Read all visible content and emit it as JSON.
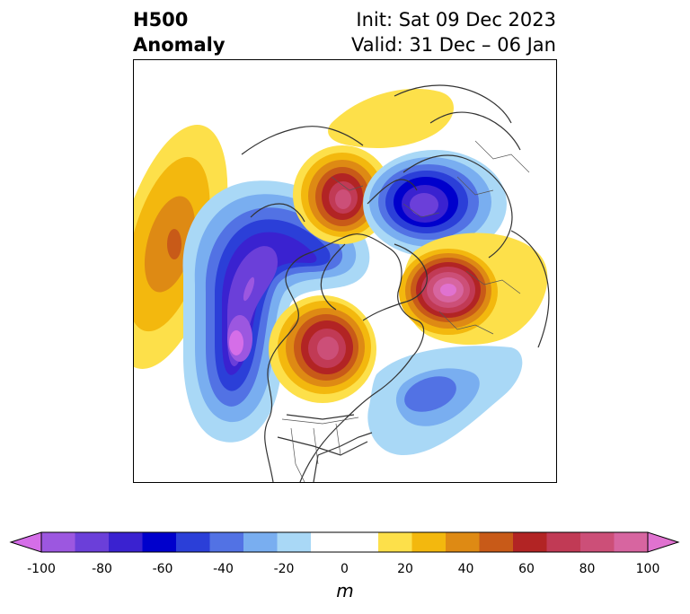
{
  "title": {
    "left_line1": "H500",
    "left_line2": "Anomaly",
    "right_line1": "Init: Sat 09 Dec 2023",
    "right_line2": "Valid: 31 Dec – 06 Jan"
  },
  "colorbar": {
    "unit": "m",
    "range": [
      -100,
      100
    ],
    "step": 10,
    "extend": "both",
    "ticks": [
      "-100",
      "-80",
      "-60",
      "-40",
      "-20",
      "0",
      "20",
      "40",
      "60",
      "80",
      "100"
    ],
    "colors": [
      "#d56ee8",
      "#9c57e0",
      "#6b3fd9",
      "#3a22d0",
      "#0000cc",
      "#2b3fd8",
      "#5272e4",
      "#79aef0",
      "#a9d8f6",
      "#ffffff",
      "#ffffff",
      "#fde04a",
      "#f3b80e",
      "#de8a14",
      "#c85a18",
      "#b22424",
      "#c13a55",
      "#cc4f78",
      "#d765a0",
      "#e072d0"
    ]
  },
  "map": {
    "projection": "polar-stereographic",
    "region": "Northern Hemisphere centered on North America",
    "anomaly_centers": [
      {
        "name": "north-pacific-ridge",
        "value": 45
      },
      {
        "name": "western-north-america-trough",
        "value": -95
      },
      {
        "name": "central-canada-ridge",
        "value": 75
      },
      {
        "name": "greenland-arctic-ridge",
        "value": 75
      },
      {
        "name": "siberia-arctic-trough",
        "value": -85
      },
      {
        "name": "europe-ridge",
        "value": 88
      },
      {
        "name": "north-atlantic-trough",
        "value": -40
      },
      {
        "name": "northern-arctic-ridge",
        "value": 20
      }
    ]
  }
}
